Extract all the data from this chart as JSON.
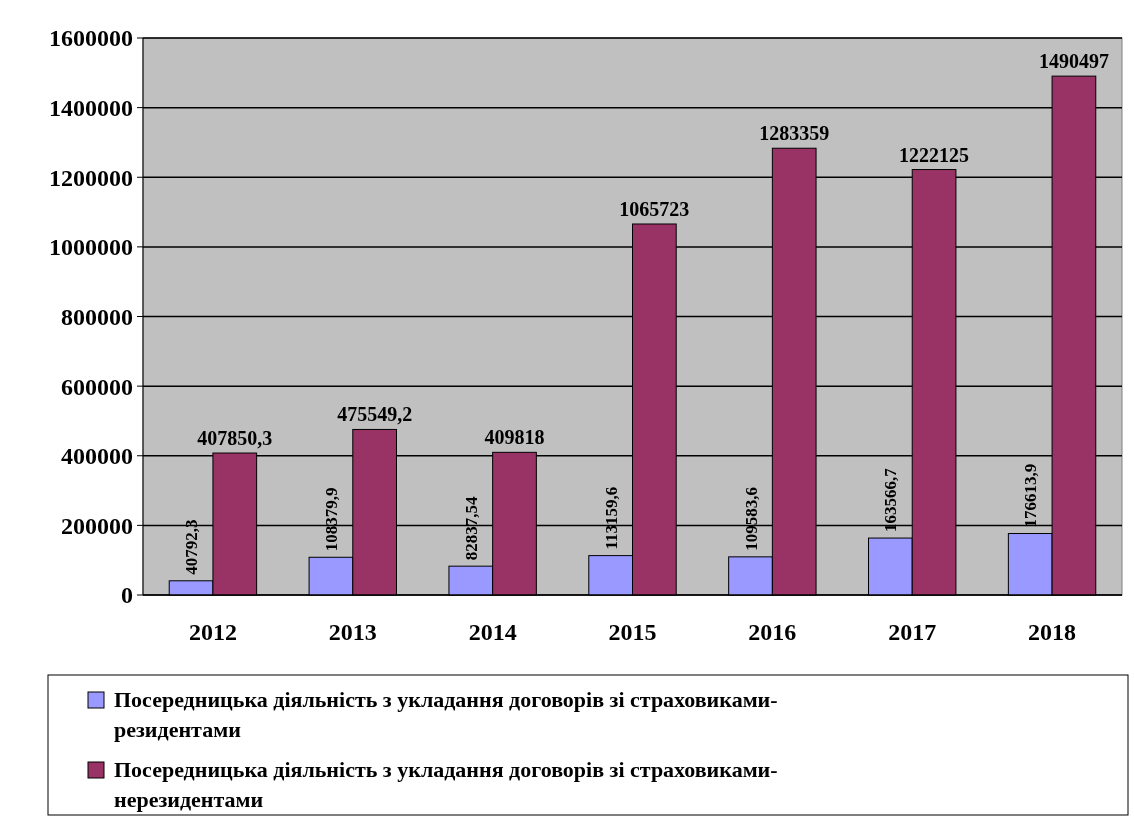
{
  "chart_data": {
    "type": "bar",
    "categories": [
      "2012",
      "2013",
      "2014",
      "2015",
      "2016",
      "2017",
      "2018"
    ],
    "series": [
      {
        "name": "Посередницька діяльність з укладання договорів зі страховиками-резидентами",
        "color": "#9999ff",
        "values": [
          40792.3,
          108379.9,
          82837.54,
          113159.6,
          109583.6,
          163566.7,
          176613.9
        ],
        "value_labels": [
          "40792,3",
          "108379,9",
          "82837,54",
          "113159,6",
          "109583,6",
          "163566,7",
          "176613,9"
        ]
      },
      {
        "name": "Посередницька діяльність з укладання договорів зі страховиками-нерезидентами",
        "color": "#993366",
        "values": [
          407850.3,
          475549.2,
          409818,
          1065723,
          1283359,
          1222125,
          1490497
        ],
        "value_labels": [
          "407850,3",
          "475549,2",
          "409818",
          "1065723",
          "1283359",
          "1222125",
          "1490497"
        ]
      }
    ],
    "ylim": [
      0,
      1600000
    ],
    "yticks": [
      0,
      200000,
      400000,
      600000,
      800000,
      1000000,
      1200000,
      1400000,
      1600000
    ],
    "grid": "y",
    "legend": "bottom"
  }
}
